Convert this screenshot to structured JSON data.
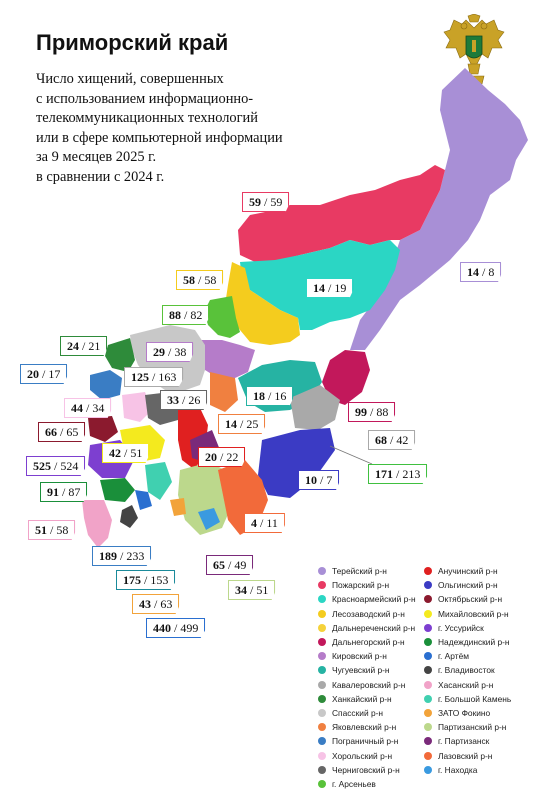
{
  "title": "Приморский край",
  "subtitle_lines": [
    "Число хищений, совершенных",
    "с использованием информационно-",
    "телекоммуникационных технологий",
    "или в сфере компьютерной информации",
    "за 9 месяцев 2025 г.",
    "в сравнении с 2024 г."
  ],
  "emblem_icon": "double-headed-eagle-emblem-icon",
  "labels": [
    {
      "id": "terney",
      "bold": "59",
      "sep": " / ",
      "rest": "59",
      "border": "#e83a63"
    },
    {
      "id": "terney2",
      "bold": "14",
      "sep": " / ",
      "rest": "8",
      "border": "#a88fd6"
    },
    {
      "id": "krasnoarm",
      "bold": "14",
      "sep": " / ",
      "rest": "19",
      "border": "#2bd6c4"
    },
    {
      "id": "lesozav",
      "bold": "58",
      "sep": " / ",
      "rest": "58",
      "border": "#f4cc1e"
    },
    {
      "id": "dalnerech",
      "bold": "88",
      "sep": " / ",
      "rest": "82",
      "border": "#59c23a"
    },
    {
      "id": "kirovsk",
      "bold": "29",
      "sep": " / ",
      "rest": "38",
      "border": "#b57cc9"
    },
    {
      "id": "khank",
      "bold": "24",
      "sep": " / ",
      "rest": "21",
      "border": "#2e8b3a"
    },
    {
      "id": "pogran",
      "bold": "20",
      "sep": " / ",
      "rest": "17",
      "border": "#3a7dc4"
    },
    {
      "id": "spassk",
      "bold": "125",
      "sep": " / ",
      "rest": "163",
      "border": "#aaaaaa"
    },
    {
      "id": "chuguev",
      "bold": "18",
      "sep": " / ",
      "rest": "16",
      "border": "#26b3a3"
    },
    {
      "id": "khorol",
      "bold": "44",
      "sep": " / ",
      "rest": "34",
      "border": "#f7c3e6"
    },
    {
      "id": "chernig",
      "bold": "33",
      "sep": " / ",
      "rest": "26",
      "border": "#666666"
    },
    {
      "id": "yakovl",
      "bold": "14",
      "sep": " / ",
      "rest": "25",
      "border": "#f08040"
    },
    {
      "id": "dalnegorsk",
      "bold": "99",
      "sep": " / ",
      "rest": "88",
      "border": "#c2185b"
    },
    {
      "id": "kaval",
      "bold": "68",
      "sep": " / ",
      "rest": "42",
      "border": "#a9a9a9"
    },
    {
      "id": "oktyabr",
      "bold": "66",
      "sep": " / ",
      "rest": "65",
      "border": "#8b1a2e"
    },
    {
      "id": "ussur",
      "bold": "525",
      "sep": " / ",
      "rest": "524",
      "border": "#7d3fd0"
    },
    {
      "id": "mikh",
      "bold": "42",
      "sep": " / ",
      "rest": "51",
      "border": "#f4ea1e"
    },
    {
      "id": "anuch",
      "bold": "20",
      "sep": " / ",
      "rest": "22",
      "border": "#e02020"
    },
    {
      "id": "bkamen",
      "bold": "171",
      "sep": " / ",
      "rest": "213",
      "border": "#40c040"
    },
    {
      "id": "olga",
      "bold": "10",
      "sep": " / ",
      "rest": "7",
      "border": "#3b3bc4"
    },
    {
      "id": "nadezh",
      "bold": "91",
      "sep": " / ",
      "rest": "87",
      "border": "#1a8f3a"
    },
    {
      "id": "partiz",
      "bold": "4",
      "sep": " / ",
      "rest": "11",
      "border": "#f26a3a"
    },
    {
      "id": "khasan",
      "bold": "51",
      "sep": " / ",
      "rest": "58",
      "border": "#f1a3c8"
    },
    {
      "id": "vladivostok",
      "bold": "189",
      "sep": " / ",
      "rest": "233",
      "border": "#3a7dc4"
    },
    {
      "id": "partizansk",
      "bold": "65",
      "sep": " / ",
      "rest": "49",
      "border": "#7a2a7a"
    },
    {
      "id": "artem",
      "bold": "175",
      "sep": " / ",
      "rest": "153",
      "border": "#1a8a9a"
    },
    {
      "id": "lazo",
      "bold": "34",
      "sep": " / ",
      "rest": "51",
      "border": "#bcd88c"
    },
    {
      "id": "fokino",
      "bold": "43",
      "sep": " / ",
      "rest": "63",
      "border": "#f2a33a"
    },
    {
      "id": "nakhodka",
      "bold": "440",
      "sep": " / ",
      "rest": "499",
      "border": "#2a6fd0"
    }
  ],
  "legend_left": [
    {
      "label": "Терейский р-н",
      "color": "#a88fd6"
    },
    {
      "label": "Пожарский р-н",
      "color": "#e83a63"
    },
    {
      "label": "Красноармейский р-н",
      "color": "#2bd6c4"
    },
    {
      "label": "Лесозаводский р-н",
      "color": "#f4cc1e"
    },
    {
      "label": "Дальнереченский р-н",
      "color": "#f5d23a"
    },
    {
      "label": "Дальнегорский р-н",
      "color": "#c2185b"
    },
    {
      "label": "Кировский р-н",
      "color": "#b57cc9"
    },
    {
      "label": "Чугуевский р-н",
      "color": "#26b3a3"
    },
    {
      "label": "Кавалеровский р-н",
      "color": "#a9a9a9"
    },
    {
      "label": "Ханкайский р-н",
      "color": "#2e8b3a"
    },
    {
      "label": "Спасский р-н",
      "color": "#c8c8c8"
    },
    {
      "label": "Яковлевский р-н",
      "color": "#f08040"
    },
    {
      "label": "Пограничный р-н",
      "color": "#3a7dc4"
    },
    {
      "label": "Хорольский р-н",
      "color": "#f7c3e6"
    },
    {
      "label": "Черниговский р-н",
      "color": "#666666"
    },
    {
      "label": "г. Арсеньев",
      "color": "#59c23a"
    }
  ],
  "legend_right": [
    {
      "label": "Анучинский р-н",
      "color": "#e02020"
    },
    {
      "label": "Ольгинский р-н",
      "color": "#3b3bc4"
    },
    {
      "label": "Октябрьский р-н",
      "color": "#8b1a2e"
    },
    {
      "label": "Михайловский р-н",
      "color": "#f4ea1e"
    },
    {
      "label": "г. Уссурийск",
      "color": "#7d3fd0"
    },
    {
      "label": "Надеждинский р-н",
      "color": "#1a8f3a"
    },
    {
      "label": "г. Артём",
      "color": "#2a6fd0"
    },
    {
      "label": "г. Владивосток",
      "color": "#444444"
    },
    {
      "label": "Хасанский р-н",
      "color": "#f1a3c8"
    },
    {
      "label": "г. Большой Камень",
      "color": "#40d0b0"
    },
    {
      "label": "ЗАТО Фокино",
      "color": "#f2a33a"
    },
    {
      "label": "Партизанский р-н",
      "color": "#bcd88c"
    },
    {
      "label": "г. Партизанск",
      "color": "#7a2a7a"
    },
    {
      "label": "Лазовский р-н",
      "color": "#f26a3a"
    },
    {
      "label": "г. Находка",
      "color": "#3a9ae0"
    }
  ]
}
